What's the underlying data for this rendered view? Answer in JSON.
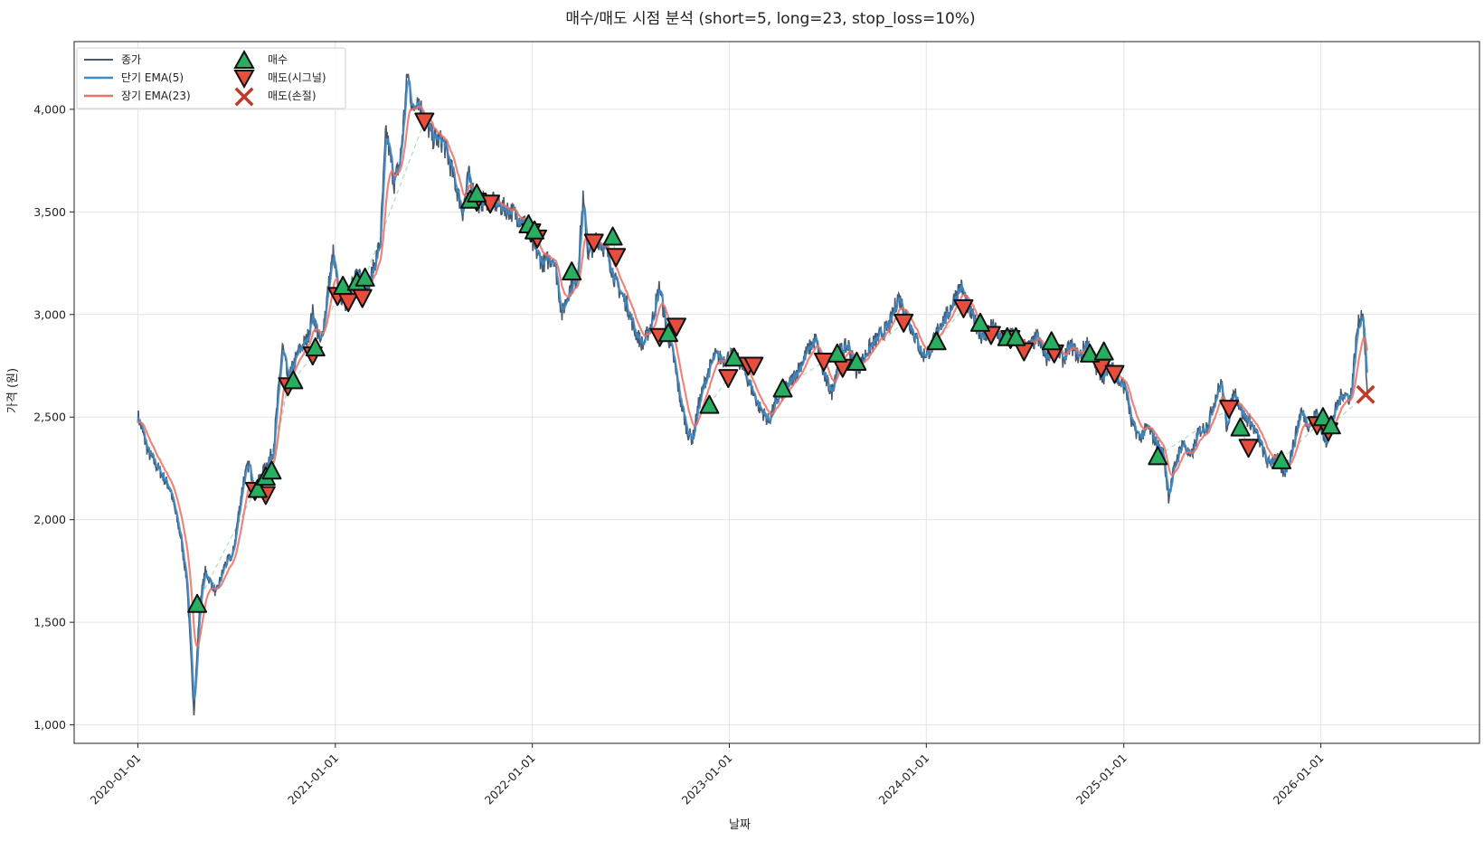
{
  "chart_data": {
    "type": "line",
    "title": "매수/매도 시점 분석 (short=5, long=23, stop_loss=10%)",
    "xlabel": "날짜",
    "ylabel": "가격 (원)",
    "x_ticks": [
      "2020-01-01",
      "2021-01-01",
      "2022-01-01",
      "2023-01-01",
      "2024-01-01",
      "2025-01-01",
      "2026-01-01"
    ],
    "y_ticks": [
      1000,
      1500,
      2000,
      2500,
      3000,
      3500,
      4000
    ],
    "y_tick_labels": [
      "1,000",
      "1,500",
      "2,000",
      "2,500",
      "3,000",
      "3,500",
      "4,000"
    ],
    "xlim": [
      "2019-09-05",
      "2026-10-22"
    ],
    "ylim": [
      910,
      4330
    ],
    "grid": true,
    "legend_position": "top-left",
    "legend": {
      "close": "종가",
      "short_ema": "단기 EMA(5)",
      "long_ema": "장기 EMA(23)",
      "buy": "매수",
      "sell_signal": "매도(시그널)",
      "sell_stop": "매도(손절)"
    },
    "colors": {
      "close": "#4a5a6e",
      "short_ema": "#3b8bc9",
      "long_ema": "#ec7063",
      "buy": "#27ae60",
      "sell_signal": "#e74c3c",
      "sell_stop": "#c0392b",
      "trade_link": "#a9dfbf"
    },
    "close_anchors": [
      [
        "2020-01-01",
        2510
      ],
      [
        "2020-01-20",
        2330
      ],
      [
        "2020-02-10",
        2240
      ],
      [
        "2020-03-01",
        2150
      ],
      [
        "2020-03-20",
        1920
      ],
      [
        "2020-04-01",
        1700
      ],
      [
        "2020-04-10",
        1250
      ],
      [
        "2020-04-14",
        1060
      ],
      [
        "2020-04-25",
        1600
      ],
      [
        "2020-05-05",
        1750
      ],
      [
        "2020-05-25",
        1640
      ],
      [
        "2020-06-10",
        1780
      ],
      [
        "2020-06-25",
        1830
      ],
      [
        "2020-07-15",
        2200
      ],
      [
        "2020-07-25",
        2270
      ],
      [
        "2020-08-05",
        2150
      ],
      [
        "2020-08-25",
        2260
      ],
      [
        "2020-09-08",
        2340
      ],
      [
        "2020-09-25",
        2850
      ],
      [
        "2020-10-05",
        2680
      ],
      [
        "2020-10-25",
        2820
      ],
      [
        "2020-11-10",
        2880
      ],
      [
        "2020-11-20",
        3010
      ],
      [
        "2020-12-05",
        2850
      ],
      [
        "2020-12-20",
        3150
      ],
      [
        "2020-12-28",
        3300
      ],
      [
        "2021-01-05",
        3120
      ],
      [
        "2021-01-20",
        3060
      ],
      [
        "2021-02-01",
        3150
      ],
      [
        "2021-02-15",
        3200
      ],
      [
        "2021-03-05",
        3150
      ],
      [
        "2021-03-25",
        3350
      ],
      [
        "2021-04-05",
        3900
      ],
      [
        "2021-04-20",
        3640
      ],
      [
        "2021-05-01",
        3750
      ],
      [
        "2021-05-15",
        4180
      ],
      [
        "2021-05-25",
        3980
      ],
      [
        "2021-06-01",
        4070
      ],
      [
        "2021-06-15",
        3950
      ],
      [
        "2021-07-01",
        3860
      ],
      [
        "2021-07-20",
        3840
      ],
      [
        "2021-08-05",
        3700
      ],
      [
        "2021-08-25",
        3500
      ],
      [
        "2021-09-05",
        3680
      ],
      [
        "2021-09-20",
        3540
      ],
      [
        "2021-10-10",
        3560
      ],
      [
        "2021-11-01",
        3530
      ],
      [
        "2021-11-25",
        3500
      ],
      [
        "2021-12-20",
        3440
      ],
      [
        "2022-01-01",
        3340
      ],
      [
        "2022-01-20",
        3250
      ],
      [
        "2022-02-10",
        3280
      ],
      [
        "2022-02-25",
        3000
      ],
      [
        "2022-03-10",
        3120
      ],
      [
        "2022-03-25",
        3180
      ],
      [
        "2022-04-05",
        3560
      ],
      [
        "2022-04-15",
        3280
      ],
      [
        "2022-04-30",
        3380
      ],
      [
        "2022-05-20",
        3300
      ],
      [
        "2022-06-05",
        3150
      ],
      [
        "2022-06-25",
        3050
      ],
      [
        "2022-07-10",
        2920
      ],
      [
        "2022-07-25",
        2850
      ],
      [
        "2022-08-10",
        2960
      ],
      [
        "2022-08-25",
        3140
      ],
      [
        "2022-09-05",
        2950
      ],
      [
        "2022-09-20",
        2780
      ],
      [
        "2022-10-01",
        2600
      ],
      [
        "2022-10-15",
        2430
      ],
      [
        "2022-10-25",
        2390
      ],
      [
        "2022-11-05",
        2560
      ],
      [
        "2022-11-20",
        2700
      ],
      [
        "2022-12-05",
        2800
      ],
      [
        "2022-12-20",
        2780
      ],
      [
        "2023-01-05",
        2800
      ],
      [
        "2023-01-20",
        2770
      ],
      [
        "2023-02-05",
        2680
      ],
      [
        "2023-02-25",
        2550
      ],
      [
        "2023-03-15",
        2480
      ],
      [
        "2023-04-01",
        2590
      ],
      [
        "2023-04-20",
        2650
      ],
      [
        "2023-05-10",
        2740
      ],
      [
        "2023-05-25",
        2820
      ],
      [
        "2023-06-10",
        2880
      ],
      [
        "2023-06-25",
        2700
      ],
      [
        "2023-07-10",
        2620
      ],
      [
        "2023-07-25",
        2820
      ],
      [
        "2023-08-10",
        2850
      ],
      [
        "2023-08-25",
        2720
      ],
      [
        "2023-09-15",
        2830
      ],
      [
        "2023-10-05",
        2890
      ],
      [
        "2023-10-25",
        2950
      ],
      [
        "2023-11-10",
        3090
      ],
      [
        "2023-11-25",
        3000
      ],
      [
        "2023-12-10",
        2900
      ],
      [
        "2023-12-25",
        2800
      ],
      [
        "2024-01-10",
        2830
      ],
      [
        "2024-01-25",
        2950
      ],
      [
        "2024-02-10",
        3000
      ],
      [
        "2024-02-25",
        3100
      ],
      [
        "2024-03-05",
        3140
      ],
      [
        "2024-03-20",
        3020
      ],
      [
        "2024-04-01",
        2960
      ],
      [
        "2024-04-15",
        2880
      ],
      [
        "2024-05-01",
        2950
      ],
      [
        "2024-05-20",
        2870
      ],
      [
        "2024-06-05",
        2920
      ],
      [
        "2024-06-20",
        2860
      ],
      [
        "2024-07-10",
        2840
      ],
      [
        "2024-07-25",
        2890
      ],
      [
        "2024-08-10",
        2780
      ],
      [
        "2024-08-25",
        2850
      ],
      [
        "2024-09-10",
        2780
      ],
      [
        "2024-09-25",
        2850
      ],
      [
        "2024-10-10",
        2790
      ],
      [
        "2024-10-25",
        2870
      ],
      [
        "2024-11-10",
        2740
      ],
      [
        "2024-11-25",
        2700
      ],
      [
        "2024-12-10",
        2760
      ],
      [
        "2024-12-20",
        2680
      ],
      [
        "2025-01-05",
        2640
      ],
      [
        "2025-01-15",
        2470
      ],
      [
        "2025-01-30",
        2400
      ],
      [
        "2025-02-15",
        2450
      ],
      [
        "2025-03-01",
        2380
      ],
      [
        "2025-03-15",
        2320
      ],
      [
        "2025-03-25",
        2110
      ],
      [
        "2025-04-05",
        2260
      ],
      [
        "2025-04-20",
        2380
      ],
      [
        "2025-05-05",
        2300
      ],
      [
        "2025-05-20",
        2430
      ],
      [
        "2025-06-05",
        2460
      ],
      [
        "2025-06-20",
        2600
      ],
      [
        "2025-07-01",
        2670
      ],
      [
        "2025-07-10",
        2450
      ],
      [
        "2025-07-25",
        2630
      ],
      [
        "2025-08-10",
        2510
      ],
      [
        "2025-08-25",
        2470
      ],
      [
        "2025-09-10",
        2380
      ],
      [
        "2025-09-25",
        2270
      ],
      [
        "2025-10-10",
        2310
      ],
      [
        "2025-10-25",
        2220
      ],
      [
        "2025-11-10",
        2350
      ],
      [
        "2025-11-25",
        2530
      ],
      [
        "2025-12-10",
        2460
      ],
      [
        "2025-12-25",
        2520
      ],
      [
        "2026-01-10",
        2370
      ],
      [
        "2026-01-25",
        2510
      ],
      [
        "2026-02-10",
        2620
      ],
      [
        "2026-02-25",
        2590
      ],
      [
        "2026-03-10",
        2940
      ],
      [
        "2026-03-20",
        3020
      ],
      [
        "2026-03-28",
        2620
      ]
    ],
    "buy_points": [
      [
        "2020-04-20",
        1590
      ],
      [
        "2020-08-10",
        2150
      ],
      [
        "2020-08-25",
        2210
      ],
      [
        "2020-09-05",
        2240
      ],
      [
        "2020-10-15",
        2680
      ],
      [
        "2020-11-25",
        2840
      ],
      [
        "2021-01-15",
        3140
      ],
      [
        "2021-02-10",
        3160
      ],
      [
        "2021-02-25",
        3180
      ],
      [
        "2021-09-08",
        3560
      ],
      [
        "2021-09-20",
        3590
      ],
      [
        "2021-12-25",
        3440
      ],
      [
        "2022-01-05",
        3410
      ],
      [
        "2022-03-15",
        3210
      ],
      [
        "2022-05-30",
        3380
      ],
      [
        "2022-09-10",
        2910
      ],
      [
        "2022-11-25",
        2560
      ],
      [
        "2023-01-10",
        2790
      ],
      [
        "2023-04-10",
        2640
      ],
      [
        "2023-07-20",
        2810
      ],
      [
        "2023-08-25",
        2770
      ],
      [
        "2024-01-20",
        2870
      ],
      [
        "2024-04-10",
        2960
      ],
      [
        "2024-05-30",
        2890
      ],
      [
        "2024-06-15",
        2890
      ],
      [
        "2024-08-20",
        2870
      ],
      [
        "2024-10-30",
        2810
      ],
      [
        "2024-11-25",
        2820
      ],
      [
        "2025-03-05",
        2310
      ],
      [
        "2025-08-05",
        2450
      ],
      [
        "2025-10-20",
        2290
      ],
      [
        "2026-01-05",
        2500
      ],
      [
        "2026-01-20",
        2460
      ]
    ],
    "sell_signal_points": [
      [
        "2020-08-05",
        2140
      ],
      [
        "2020-08-25",
        2120
      ],
      [
        "2020-10-05",
        2650
      ],
      [
        "2020-11-20",
        2800
      ],
      [
        "2021-01-05",
        3090
      ],
      [
        "2021-01-25",
        3060
      ],
      [
        "2021-02-20",
        3080
      ],
      [
        "2021-06-15",
        3940
      ],
      [
        "2021-09-20",
        3550
      ],
      [
        "2021-10-15",
        3540
      ],
      [
        "2021-12-30",
        3400
      ],
      [
        "2022-01-10",
        3370
      ],
      [
        "2022-04-25",
        3350
      ],
      [
        "2022-06-05",
        3280
      ],
      [
        "2022-08-25",
        2890
      ],
      [
        "2022-09-25",
        2940
      ],
      [
        "2022-12-30",
        2690
      ],
      [
        "2023-02-05",
        2750
      ],
      [
        "2023-02-15",
        2750
      ],
      [
        "2023-06-25",
        2770
      ],
      [
        "2023-07-30",
        2740
      ],
      [
        "2023-11-20",
        2960
      ],
      [
        "2024-03-10",
        3030
      ],
      [
        "2024-04-30",
        2900
      ],
      [
        "2024-06-05",
        2880
      ],
      [
        "2024-06-30",
        2820
      ],
      [
        "2024-08-25",
        2810
      ],
      [
        "2024-11-20",
        2740
      ],
      [
        "2024-12-15",
        2710
      ],
      [
        "2025-07-15",
        2540
      ],
      [
        "2025-08-20",
        2350
      ],
      [
        "2025-12-25",
        2460
      ],
      [
        "2026-01-15",
        2430
      ]
    ],
    "sell_stop_points": [
      [
        "2026-03-25",
        2610
      ]
    ]
  }
}
